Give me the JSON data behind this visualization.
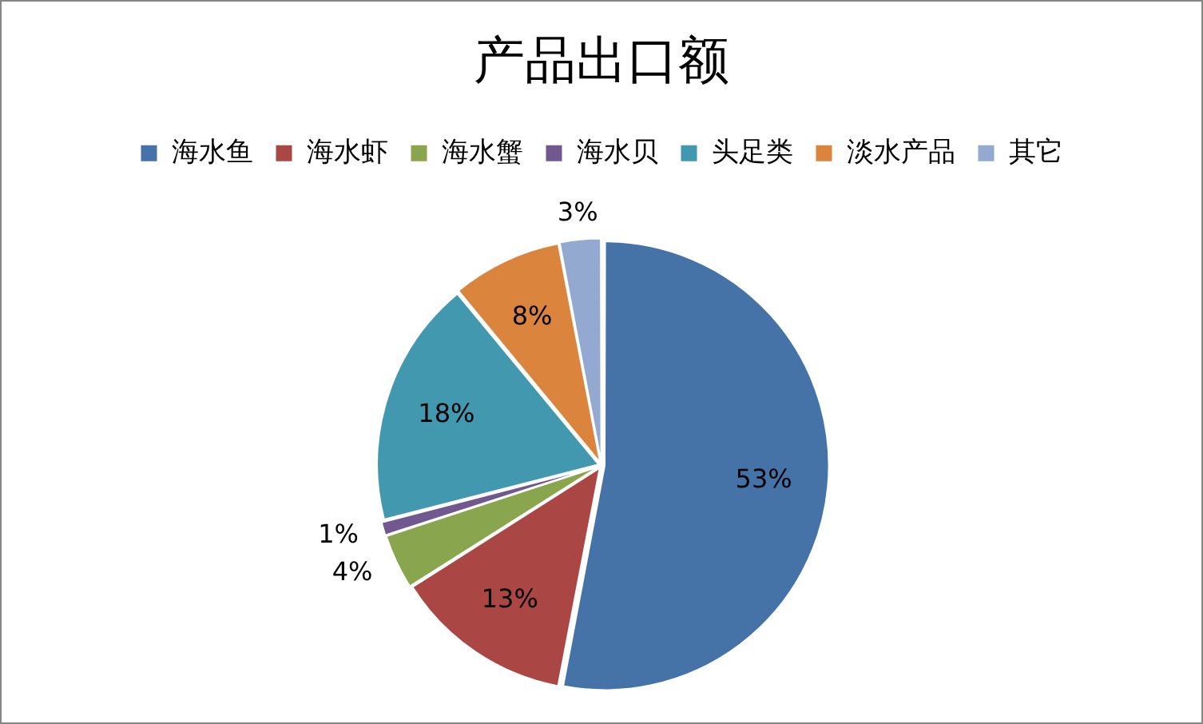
{
  "chart_data": {
    "type": "pie",
    "title": "产品出口额",
    "categories": [
      "海水鱼",
      "海水虾",
      "海水蟹",
      "海水贝",
      "头足类",
      "淡水产品",
      "其它"
    ],
    "values": [
      53,
      13,
      4,
      1,
      18,
      8,
      3
    ],
    "colors": [
      "#4572a7",
      "#aa4643",
      "#89a54e",
      "#71588f",
      "#4198af",
      "#db843d",
      "#93a9cf"
    ],
    "value_labels": [
      "53%",
      "13%",
      "4%",
      "1%",
      "18%",
      "8%",
      "3%"
    ],
    "legend": "top"
  }
}
